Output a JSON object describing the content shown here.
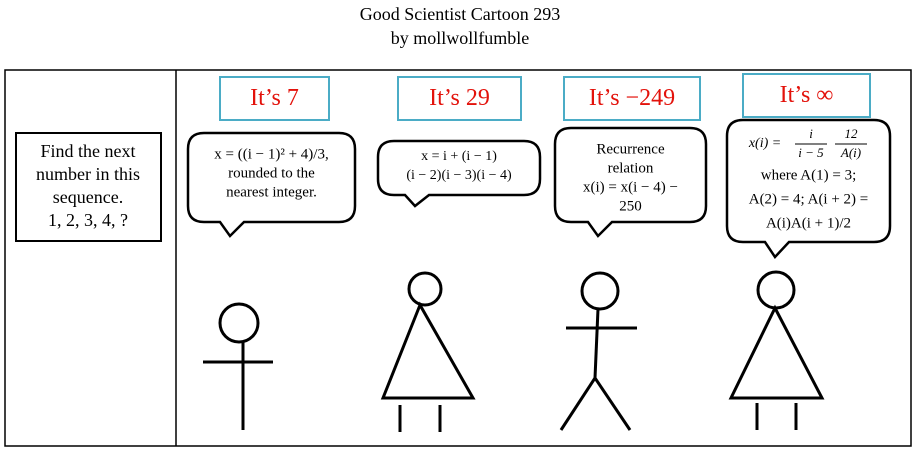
{
  "title": "Good Scientist Cartoon 293",
  "byline": "by mollwollfumble",
  "prompt": {
    "lines": [
      "Find the next",
      "number in this",
      "sequence.",
      "1, 2, 3, 4, ?"
    ]
  },
  "panels": [
    {
      "answer": "It’s 7",
      "bubble": [
        "x = ((i − 1)² + 4)/3,",
        "rounded to the",
        "nearest integer."
      ]
    },
    {
      "answer": "It’s 29",
      "bubble": [
        "x = i + (i − 1)",
        "(i − 2)(i − 3)(i − 4)"
      ]
    },
    {
      "answer": "It’s −249",
      "bubble": [
        "Recurrence",
        "relation",
        "x(i) = x(i − 4) −",
        "250"
      ]
    },
    {
      "answer": "It’s ∞",
      "formula": {
        "lhs": "x(i) =",
        "fractions": [
          {
            "num": "i",
            "den": "i − 5"
          },
          {
            "num": "12",
            "den": "A(i)"
          }
        ]
      },
      "bubble": [
        "where A(1) = 3;",
        "A(2) = 4; A(i + 2) =",
        "A(i)A(i + 1)/2"
      ]
    }
  ]
}
